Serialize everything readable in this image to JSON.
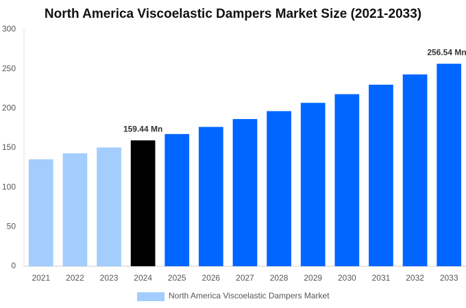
{
  "chart_data": {
    "type": "bar",
    "title": "North America Viscoelastic Dampers Market Size (2021-2033)",
    "categories": [
      "2021",
      "2022",
      "2023",
      "2024",
      "2025",
      "2026",
      "2027",
      "2028",
      "2029",
      "2030",
      "2031",
      "2032",
      "2033"
    ],
    "series": [
      {
        "name": "North America Viscoelastic Dampers Market",
        "color": "#a3cdfc",
        "colors": [
          "#a3cdfc",
          "#a3cdfc",
          "#a3cdfc",
          "#000000",
          "#0066ff",
          "#0066ff",
          "#0066ff",
          "#0066ff",
          "#0066ff",
          "#0066ff",
          "#0066ff",
          "#0066ff",
          "#0066ff"
        ],
        "values": [
          135.5,
          143,
          150.5,
          159.44,
          167.5,
          176.5,
          186.5,
          196.5,
          207,
          218,
          230,
          243,
          256.54
        ],
        "value_labels": [
          null,
          null,
          null,
          "159.44 Mn",
          null,
          null,
          null,
          null,
          null,
          null,
          null,
          null,
          "256.54 Mn"
        ]
      }
    ],
    "ylim": [
      0,
      300
    ],
    "yticks": [
      0,
      50,
      100,
      150,
      200,
      250,
      300
    ],
    "grid": false
  }
}
